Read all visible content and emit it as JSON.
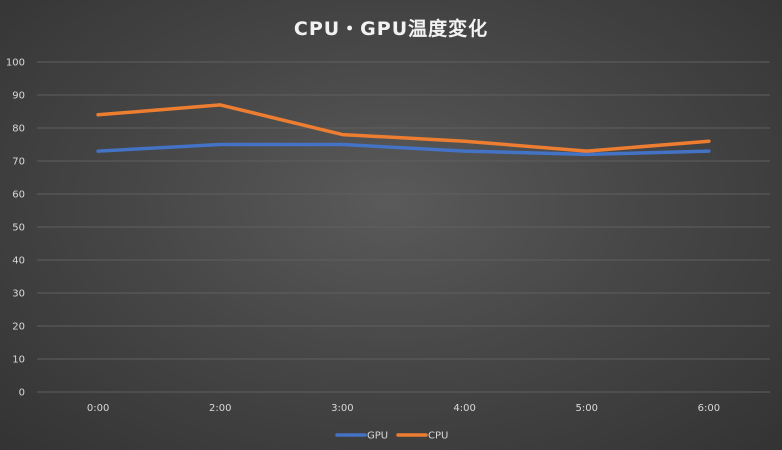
{
  "chart_data": {
    "type": "line",
    "title": "CPU・GPU温度変化",
    "xlabel": "",
    "ylabel": "",
    "categories": [
      "0:00",
      "2:00",
      "3:00",
      "4:00",
      "5:00",
      "6:00"
    ],
    "ylim": [
      0,
      100
    ],
    "yticks": [
      0,
      10,
      20,
      30,
      40,
      50,
      60,
      70,
      80,
      90,
      100
    ],
    "grid": true,
    "legend_position": "bottom",
    "series": [
      {
        "name": "GPU",
        "color": "#4472c4",
        "values": [
          73,
          75,
          75,
          73,
          72,
          73
        ]
      },
      {
        "name": "CPU",
        "color": "#ed7d31",
        "values": [
          84,
          87,
          78,
          76,
          73,
          76
        ]
      }
    ]
  }
}
